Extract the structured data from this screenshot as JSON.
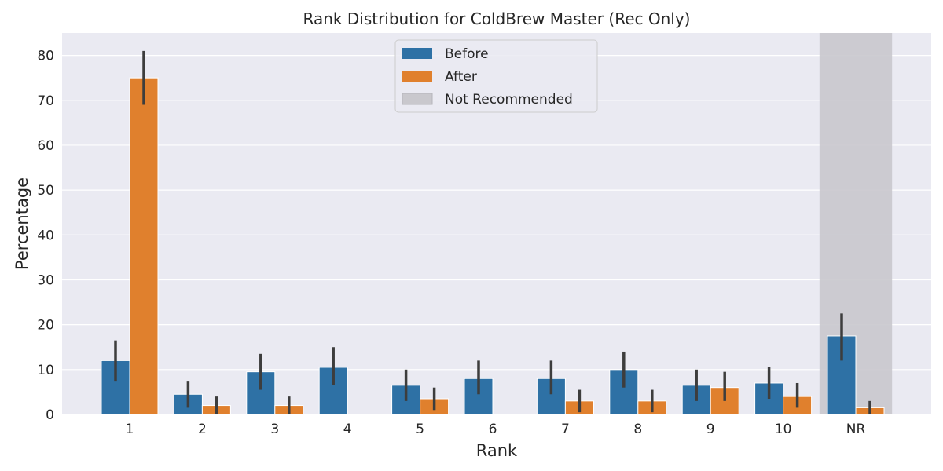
{
  "chart_data": {
    "type": "bar",
    "title": "Rank Distribution for ColdBrew Master (Rec Only)",
    "xlabel": "Rank",
    "ylabel": "Percentage",
    "ylim": [
      0,
      85
    ],
    "yticks": [
      "0",
      "10",
      "20",
      "30",
      "40",
      "50",
      "60",
      "70",
      "80"
    ],
    "categories": [
      "1",
      "2",
      "3",
      "4",
      "5",
      "6",
      "7",
      "8",
      "9",
      "10",
      "NR"
    ],
    "series": [
      {
        "name": "Before",
        "color": "#2e71a5",
        "values": [
          12,
          4.5,
          9.5,
          10.5,
          6.5,
          8,
          8,
          10,
          6.5,
          7,
          17.5
        ],
        "error_low": [
          7.5,
          1.5,
          5.5,
          6.5,
          3,
          4.5,
          4.5,
          6,
          3,
          3.5,
          12
        ],
        "error_high": [
          16.5,
          7.5,
          13.5,
          15,
          10,
          12,
          12,
          14,
          10,
          10.5,
          22.5
        ]
      },
      {
        "name": "After",
        "color": "#e0802d",
        "values": [
          75,
          2,
          2,
          0,
          3.5,
          0,
          3,
          3,
          6,
          4,
          1.5
        ],
        "error_low": [
          69,
          0,
          0,
          0,
          1,
          0,
          0.5,
          0.5,
          3,
          1.5,
          0
        ],
        "error_high": [
          81,
          4,
          4,
          0,
          6,
          0,
          5.5,
          5.5,
          9.5,
          7,
          3
        ]
      }
    ],
    "shaded_region": {
      "label": "Not Recommended",
      "category": "NR",
      "color": "#c9c8cd"
    },
    "legend": {
      "placement": "top-center",
      "entries": [
        "Before",
        "After",
        "Not Recommended"
      ]
    },
    "grid": true,
    "background": "#eaeaf2"
  }
}
